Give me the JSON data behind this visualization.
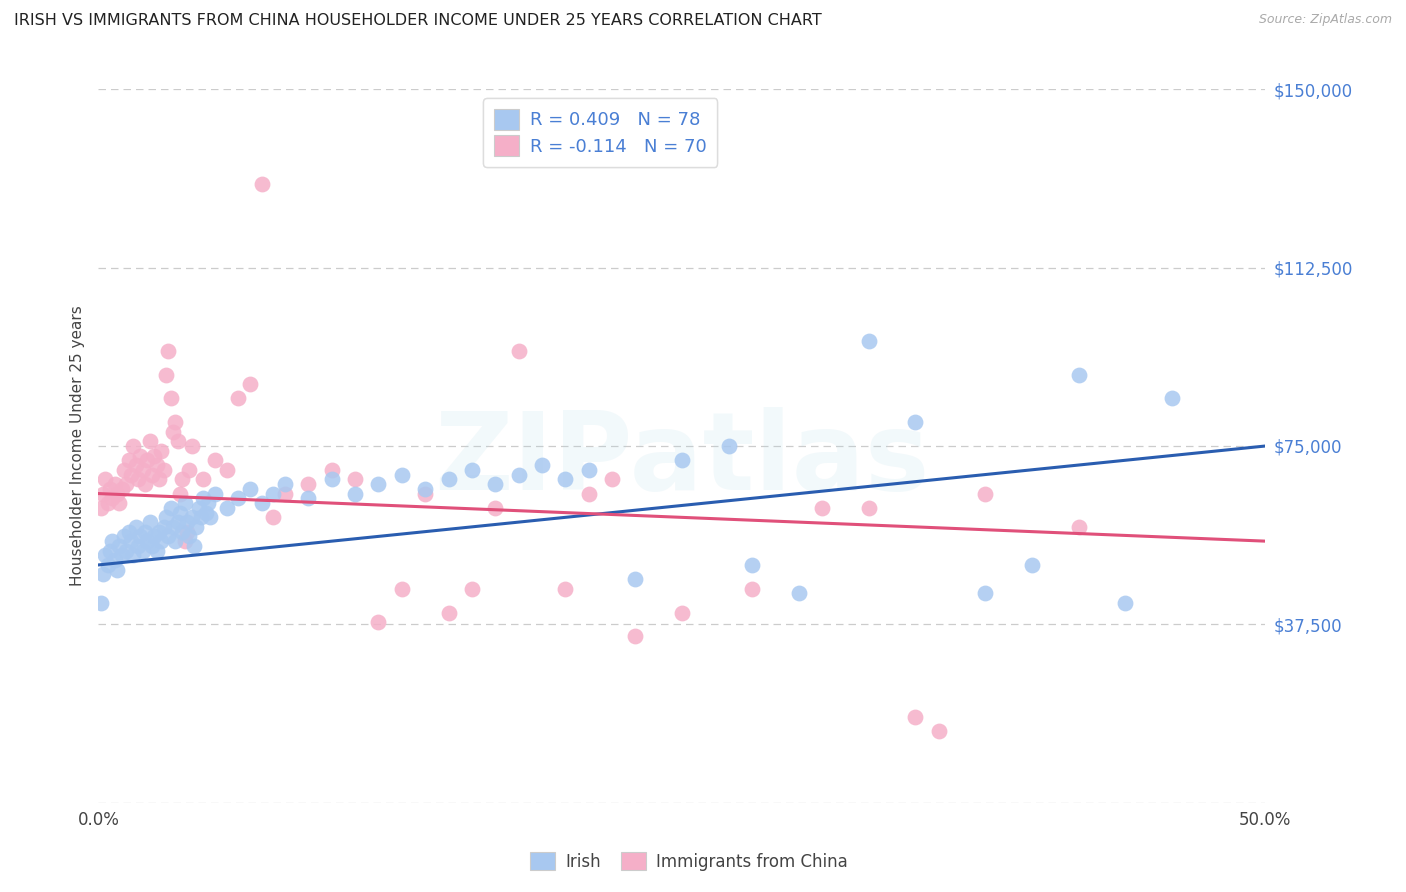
{
  "title": "IRISH VS IMMIGRANTS FROM CHINA HOUSEHOLDER INCOME UNDER 25 YEARS CORRELATION CHART",
  "source": "Source: ZipAtlas.com",
  "ylabel": "Householder Income Under 25 years",
  "xmin": 0.0,
  "xmax": 0.5,
  "ymin": 0,
  "ymax": 150000,
  "yticks": [
    0,
    37500,
    75000,
    112500,
    150000
  ],
  "ytick_labels": [
    "",
    "$37,500",
    "$75,000",
    "$112,500",
    "$150,000"
  ],
  "blue_dot_color": "#a8c8f0",
  "pink_dot_color": "#f5afc8",
  "blue_line_color": "#2a5db0",
  "pink_line_color": "#e0507a",
  "legend_text_color": "#4a7fd4",
  "legend_blue_label": "R = 0.409   N = 78",
  "legend_pink_label": "R = -0.114   N = 70",
  "blue_intercept": 50000,
  "blue_slope": 50000,
  "pink_intercept": 65000,
  "pink_slope": -20000,
  "xtick_positions": [
    0.0,
    0.5
  ],
  "xtick_labels": [
    "0.0%",
    "50.0%"
  ],
  "irish_label": "Irish",
  "china_label": "Immigrants from China",
  "watermark": "ZIPatlas",
  "blue_dots": [
    [
      0.001,
      42000
    ],
    [
      0.002,
      48000
    ],
    [
      0.003,
      52000
    ],
    [
      0.004,
      50000
    ],
    [
      0.005,
      53000
    ],
    [
      0.006,
      55000
    ],
    [
      0.007,
      51000
    ],
    [
      0.008,
      49000
    ],
    [
      0.009,
      54000
    ],
    [
      0.01,
      52000
    ],
    [
      0.011,
      56000
    ],
    [
      0.012,
      53000
    ],
    [
      0.013,
      57000
    ],
    [
      0.014,
      55000
    ],
    [
      0.015,
      52000
    ],
    [
      0.016,
      58000
    ],
    [
      0.017,
      54000
    ],
    [
      0.018,
      56000
    ],
    [
      0.019,
      53000
    ],
    [
      0.02,
      57000
    ],
    [
      0.021,
      55000
    ],
    [
      0.022,
      59000
    ],
    [
      0.023,
      54000
    ],
    [
      0.024,
      56000
    ],
    [
      0.025,
      53000
    ],
    [
      0.026,
      57000
    ],
    [
      0.027,
      55000
    ],
    [
      0.028,
      58000
    ],
    [
      0.029,
      60000
    ],
    [
      0.03,
      56000
    ],
    [
      0.031,
      62000
    ],
    [
      0.032,
      58000
    ],
    [
      0.033,
      55000
    ],
    [
      0.034,
      59000
    ],
    [
      0.035,
      61000
    ],
    [
      0.036,
      57000
    ],
    [
      0.037,
      63000
    ],
    [
      0.038,
      59000
    ],
    [
      0.039,
      56000
    ],
    [
      0.04,
      60000
    ],
    [
      0.041,
      54000
    ],
    [
      0.042,
      58000
    ],
    [
      0.043,
      62000
    ],
    [
      0.044,
      60000
    ],
    [
      0.045,
      64000
    ],
    [
      0.046,
      61000
    ],
    [
      0.047,
      63000
    ],
    [
      0.048,
      60000
    ],
    [
      0.05,
      65000
    ],
    [
      0.055,
      62000
    ],
    [
      0.06,
      64000
    ],
    [
      0.065,
      66000
    ],
    [
      0.07,
      63000
    ],
    [
      0.075,
      65000
    ],
    [
      0.08,
      67000
    ],
    [
      0.09,
      64000
    ],
    [
      0.1,
      68000
    ],
    [
      0.11,
      65000
    ],
    [
      0.12,
      67000
    ],
    [
      0.13,
      69000
    ],
    [
      0.14,
      66000
    ],
    [
      0.15,
      68000
    ],
    [
      0.16,
      70000
    ],
    [
      0.17,
      67000
    ],
    [
      0.18,
      69000
    ],
    [
      0.19,
      71000
    ],
    [
      0.2,
      68000
    ],
    [
      0.21,
      70000
    ],
    [
      0.23,
      47000
    ],
    [
      0.25,
      72000
    ],
    [
      0.27,
      75000
    ],
    [
      0.28,
      50000
    ],
    [
      0.3,
      44000
    ],
    [
      0.33,
      97000
    ],
    [
      0.35,
      80000
    ],
    [
      0.38,
      44000
    ],
    [
      0.4,
      50000
    ],
    [
      0.42,
      90000
    ],
    [
      0.44,
      42000
    ],
    [
      0.46,
      85000
    ]
  ],
  "pink_dots": [
    [
      0.001,
      62000
    ],
    [
      0.002,
      65000
    ],
    [
      0.003,
      68000
    ],
    [
      0.004,
      63000
    ],
    [
      0.005,
      66000
    ],
    [
      0.006,
      64000
    ],
    [
      0.007,
      67000
    ],
    [
      0.008,
      65000
    ],
    [
      0.009,
      63000
    ],
    [
      0.01,
      66000
    ],
    [
      0.011,
      70000
    ],
    [
      0.012,
      67000
    ],
    [
      0.013,
      72000
    ],
    [
      0.014,
      69000
    ],
    [
      0.015,
      75000
    ],
    [
      0.016,
      71000
    ],
    [
      0.017,
      68000
    ],
    [
      0.018,
      73000
    ],
    [
      0.019,
      70000
    ],
    [
      0.02,
      67000
    ],
    [
      0.021,
      72000
    ],
    [
      0.022,
      76000
    ],
    [
      0.023,
      69000
    ],
    [
      0.024,
      73000
    ],
    [
      0.025,
      71000
    ],
    [
      0.026,
      68000
    ],
    [
      0.027,
      74000
    ],
    [
      0.028,
      70000
    ],
    [
      0.029,
      90000
    ],
    [
      0.03,
      95000
    ],
    [
      0.031,
      85000
    ],
    [
      0.032,
      78000
    ],
    [
      0.033,
      80000
    ],
    [
      0.034,
      76000
    ],
    [
      0.035,
      65000
    ],
    [
      0.036,
      68000
    ],
    [
      0.037,
      55000
    ],
    [
      0.038,
      57000
    ],
    [
      0.039,
      70000
    ],
    [
      0.04,
      75000
    ],
    [
      0.045,
      68000
    ],
    [
      0.05,
      72000
    ],
    [
      0.055,
      70000
    ],
    [
      0.06,
      85000
    ],
    [
      0.065,
      88000
    ],
    [
      0.07,
      130000
    ],
    [
      0.075,
      60000
    ],
    [
      0.08,
      65000
    ],
    [
      0.09,
      67000
    ],
    [
      0.1,
      70000
    ],
    [
      0.11,
      68000
    ],
    [
      0.12,
      38000
    ],
    [
      0.13,
      45000
    ],
    [
      0.14,
      65000
    ],
    [
      0.15,
      40000
    ],
    [
      0.16,
      45000
    ],
    [
      0.17,
      62000
    ],
    [
      0.18,
      95000
    ],
    [
      0.2,
      45000
    ],
    [
      0.21,
      65000
    ],
    [
      0.22,
      68000
    ],
    [
      0.23,
      35000
    ],
    [
      0.25,
      40000
    ],
    [
      0.28,
      45000
    ],
    [
      0.31,
      62000
    ],
    [
      0.33,
      62000
    ],
    [
      0.35,
      18000
    ],
    [
      0.36,
      15000
    ],
    [
      0.38,
      65000
    ],
    [
      0.42,
      58000
    ]
  ]
}
